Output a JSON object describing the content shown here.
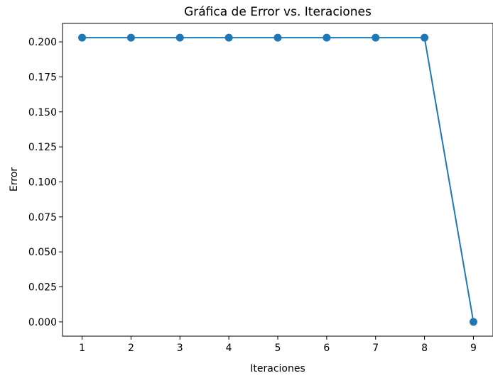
{
  "chart_data": {
    "type": "line",
    "title": "Gráfica de Error vs. Iteraciones",
    "xlabel": "Iteraciones",
    "ylabel": "Error",
    "x": [
      1,
      2,
      3,
      4,
      5,
      6,
      7,
      8,
      9
    ],
    "series": [
      {
        "values": [
          0.203,
          0.203,
          0.203,
          0.203,
          0.203,
          0.203,
          0.203,
          0.203,
          0.0
        ],
        "color": "#1f77b4",
        "marker": "circle"
      }
    ],
    "xticks": [
      "1",
      "2",
      "3",
      "4",
      "5",
      "6",
      "7",
      "8",
      "9"
    ],
    "yticks": [
      0.0,
      0.025,
      0.05,
      0.075,
      0.1,
      0.125,
      0.15,
      0.175,
      0.2
    ],
    "yticklabels": [
      "0.000",
      "0.025",
      "0.050",
      "0.075",
      "0.100",
      "0.125",
      "0.150",
      "0.175",
      "0.200"
    ],
    "xlim": [
      0.6,
      9.4
    ],
    "ylim": [
      -0.0102,
      0.2132
    ],
    "grid": false,
    "legend": "none"
  }
}
